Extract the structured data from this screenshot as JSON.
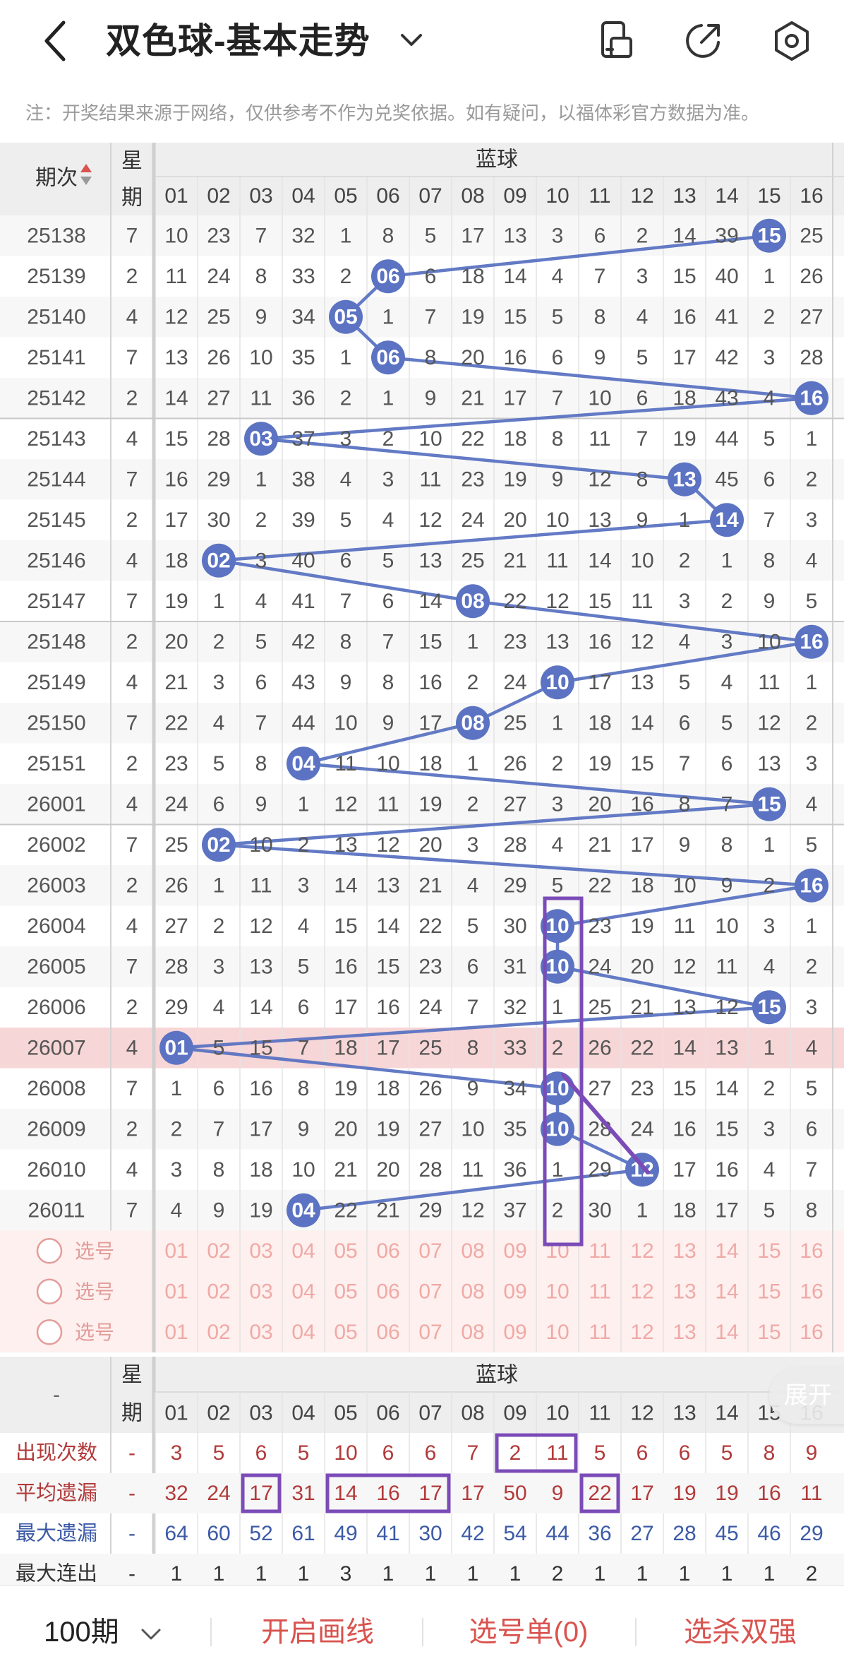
{
  "header": {
    "title": "双色球-基本走势",
    "note": "注：开奖结果来源于网络，仅供参考不作为兑奖依据。如有疑问，以福体彩官方数据为准。"
  },
  "table": {
    "issue_header": "期次",
    "week_header_1": "星",
    "week_header_2": "期",
    "section_label": "蓝球",
    "columns": [
      "01",
      "02",
      "03",
      "04",
      "05",
      "06",
      "07",
      "08",
      "09",
      "10",
      "11",
      "12",
      "13",
      "14",
      "15",
      "16"
    ],
    "highlight_issue": "26007",
    "rows": [
      {
        "issue": "25138",
        "week": "7",
        "cells": [
          "10",
          "23",
          "7",
          "32",
          "1",
          "8",
          "5",
          "17",
          "13",
          "3",
          "6",
          "2",
          "14",
          "39",
          "15",
          "25"
        ],
        "hit": 15
      },
      {
        "issue": "25139",
        "week": "2",
        "cells": [
          "11",
          "24",
          "8",
          "33",
          "2",
          "06",
          "6",
          "18",
          "14",
          "4",
          "7",
          "3",
          "15",
          "40",
          "1",
          "26"
        ],
        "hit": 6
      },
      {
        "issue": "25140",
        "week": "4",
        "cells": [
          "12",
          "25",
          "9",
          "34",
          "05",
          "1",
          "7",
          "19",
          "15",
          "5",
          "8",
          "4",
          "16",
          "41",
          "2",
          "27"
        ],
        "hit": 5
      },
      {
        "issue": "25141",
        "week": "7",
        "cells": [
          "13",
          "26",
          "10",
          "35",
          "1",
          "06",
          "8",
          "20",
          "16",
          "6",
          "9",
          "5",
          "17",
          "42",
          "3",
          "28"
        ],
        "hit": 6
      },
      {
        "issue": "25142",
        "week": "2",
        "cells": [
          "14",
          "27",
          "11",
          "36",
          "2",
          "1",
          "9",
          "21",
          "17",
          "7",
          "10",
          "6",
          "18",
          "43",
          "4",
          "16"
        ],
        "hit": 16
      },
      {
        "issue": "25143",
        "week": "4",
        "cells": [
          "15",
          "28",
          "03",
          "37",
          "3",
          "2",
          "10",
          "22",
          "18",
          "8",
          "11",
          "7",
          "19",
          "44",
          "5",
          "1"
        ],
        "hit": 3
      },
      {
        "issue": "25144",
        "week": "7",
        "cells": [
          "16",
          "29",
          "1",
          "38",
          "4",
          "3",
          "11",
          "23",
          "19",
          "9",
          "12",
          "8",
          "13",
          "45",
          "6",
          "2"
        ],
        "hit": 13
      },
      {
        "issue": "25145",
        "week": "2",
        "cells": [
          "17",
          "30",
          "2",
          "39",
          "5",
          "4",
          "12",
          "24",
          "20",
          "10",
          "13",
          "9",
          "1",
          "14",
          "7",
          "3"
        ],
        "hit": 14
      },
      {
        "issue": "25146",
        "week": "4",
        "cells": [
          "18",
          "02",
          "3",
          "40",
          "6",
          "5",
          "13",
          "25",
          "21",
          "11",
          "14",
          "10",
          "2",
          "1",
          "8",
          "4"
        ],
        "hit": 2
      },
      {
        "issue": "25147",
        "week": "7",
        "cells": [
          "19",
          "1",
          "4",
          "41",
          "7",
          "6",
          "14",
          "08",
          "22",
          "12",
          "15",
          "11",
          "3",
          "2",
          "9",
          "5"
        ],
        "hit": 8
      },
      {
        "issue": "25148",
        "week": "2",
        "cells": [
          "20",
          "2",
          "5",
          "42",
          "8",
          "7",
          "15",
          "1",
          "23",
          "13",
          "16",
          "12",
          "4",
          "3",
          "10",
          "16"
        ],
        "hit": 16
      },
      {
        "issue": "25149",
        "week": "4",
        "cells": [
          "21",
          "3",
          "6",
          "43",
          "9",
          "8",
          "16",
          "2",
          "24",
          "10",
          "17",
          "13",
          "5",
          "4",
          "11",
          "1"
        ],
        "hit": 10
      },
      {
        "issue": "25150",
        "week": "7",
        "cells": [
          "22",
          "4",
          "7",
          "44",
          "10",
          "9",
          "17",
          "08",
          "25",
          "1",
          "18",
          "14",
          "6",
          "5",
          "12",
          "2"
        ],
        "hit": 8
      },
      {
        "issue": "25151",
        "week": "2",
        "cells": [
          "23",
          "5",
          "8",
          "04",
          "11",
          "10",
          "18",
          "1",
          "26",
          "2",
          "19",
          "15",
          "7",
          "6",
          "13",
          "3"
        ],
        "hit": 4
      },
      {
        "issue": "26001",
        "week": "4",
        "cells": [
          "24",
          "6",
          "9",
          "1",
          "12",
          "11",
          "19",
          "2",
          "27",
          "3",
          "20",
          "16",
          "8",
          "7",
          "15",
          "4"
        ],
        "hit": 15
      },
      {
        "issue": "26002",
        "week": "7",
        "cells": [
          "25",
          "02",
          "10",
          "2",
          "13",
          "12",
          "20",
          "3",
          "28",
          "4",
          "21",
          "17",
          "9",
          "8",
          "1",
          "5"
        ],
        "hit": 2
      },
      {
        "issue": "26003",
        "week": "2",
        "cells": [
          "26",
          "1",
          "11",
          "3",
          "14",
          "13",
          "21",
          "4",
          "29",
          "5",
          "22",
          "18",
          "10",
          "9",
          "2",
          "16"
        ],
        "hit": 16
      },
      {
        "issue": "26004",
        "week": "4",
        "cells": [
          "27",
          "2",
          "12",
          "4",
          "15",
          "14",
          "22",
          "5",
          "30",
          "10",
          "23",
          "19",
          "11",
          "10",
          "3",
          "1"
        ],
        "hit": 10
      },
      {
        "issue": "26005",
        "week": "7",
        "cells": [
          "28",
          "3",
          "13",
          "5",
          "16",
          "15",
          "23",
          "6",
          "31",
          "10",
          "24",
          "20",
          "12",
          "11",
          "4",
          "2"
        ],
        "hit": 10
      },
      {
        "issue": "26006",
        "week": "2",
        "cells": [
          "29",
          "4",
          "14",
          "6",
          "17",
          "16",
          "24",
          "7",
          "32",
          "1",
          "25",
          "21",
          "13",
          "12",
          "15",
          "3"
        ],
        "hit": 15
      },
      {
        "issue": "26007",
        "week": "4",
        "cells": [
          "01",
          "5",
          "15",
          "7",
          "18",
          "17",
          "25",
          "8",
          "33",
          "2",
          "26",
          "22",
          "14",
          "13",
          "1",
          "4"
        ],
        "hit": 1
      },
      {
        "issue": "26008",
        "week": "7",
        "cells": [
          "1",
          "6",
          "16",
          "8",
          "19",
          "18",
          "26",
          "9",
          "34",
          "10",
          "27",
          "23",
          "15",
          "14",
          "2",
          "5"
        ],
        "hit": 10
      },
      {
        "issue": "26009",
        "week": "2",
        "cells": [
          "2",
          "7",
          "17",
          "9",
          "20",
          "19",
          "27",
          "10",
          "35",
          "10",
          "28",
          "24",
          "16",
          "15",
          "3",
          "6"
        ],
        "hit": 10
      },
      {
        "issue": "26010",
        "week": "4",
        "cells": [
          "3",
          "8",
          "18",
          "10",
          "21",
          "20",
          "28",
          "11",
          "36",
          "1",
          "29",
          "12",
          "17",
          "16",
          "4",
          "7"
        ],
        "hit": 12
      },
      {
        "issue": "26011",
        "week": "7",
        "cells": [
          "4",
          "9",
          "19",
          "04",
          "22",
          "21",
          "29",
          "12",
          "37",
          "2",
          "30",
          "1",
          "18",
          "17",
          "5",
          "8"
        ],
        "hit": 4
      }
    ],
    "select_label": "选号",
    "select_rows": 3
  },
  "stats": {
    "dash": "-",
    "week_header_1": "星",
    "week_header_2": "期",
    "section_label": "蓝球",
    "rows": [
      {
        "label": "出现次数",
        "week": "-",
        "values": [
          "3",
          "5",
          "6",
          "5",
          "10",
          "6",
          "6",
          "7",
          "2",
          "11",
          "5",
          "6",
          "6",
          "5",
          "8",
          "9"
        ],
        "color": "#b23a3a"
      },
      {
        "label": "平均遗漏",
        "week": "-",
        "values": [
          "32",
          "24",
          "17",
          "31",
          "14",
          "16",
          "17",
          "17",
          "50",
          "9",
          "22",
          "17",
          "19",
          "19",
          "16",
          "11"
        ],
        "color": "#b23a3a"
      },
      {
        "label": "最大遗漏",
        "week": "-",
        "values": [
          "64",
          "60",
          "52",
          "61",
          "49",
          "41",
          "30",
          "42",
          "54",
          "44",
          "36",
          "27",
          "28",
          "45",
          "46",
          "29"
        ],
        "color": "#3c5aa6"
      },
      {
        "label": "最大连出",
        "week": "-",
        "values": [
          "1",
          "1",
          "1",
          "1",
          "3",
          "1",
          "1",
          "1",
          "1",
          "2",
          "1",
          "1",
          "1",
          "1",
          "1",
          "2"
        ],
        "color": "#333333"
      }
    ],
    "expand_label": "展开"
  },
  "bottom": {
    "periods": "100期",
    "draw_line": "开启画线",
    "selection": "选号单(0)",
    "kill": "选杀双强"
  },
  "colors": {
    "ball": "#5b73c2",
    "line": "#5b73c2",
    "annot": "#7b4bb7",
    "highlight_row": "#f7d6d7",
    "select_bg": "#fdf0ee",
    "red": "#d9534f"
  }
}
